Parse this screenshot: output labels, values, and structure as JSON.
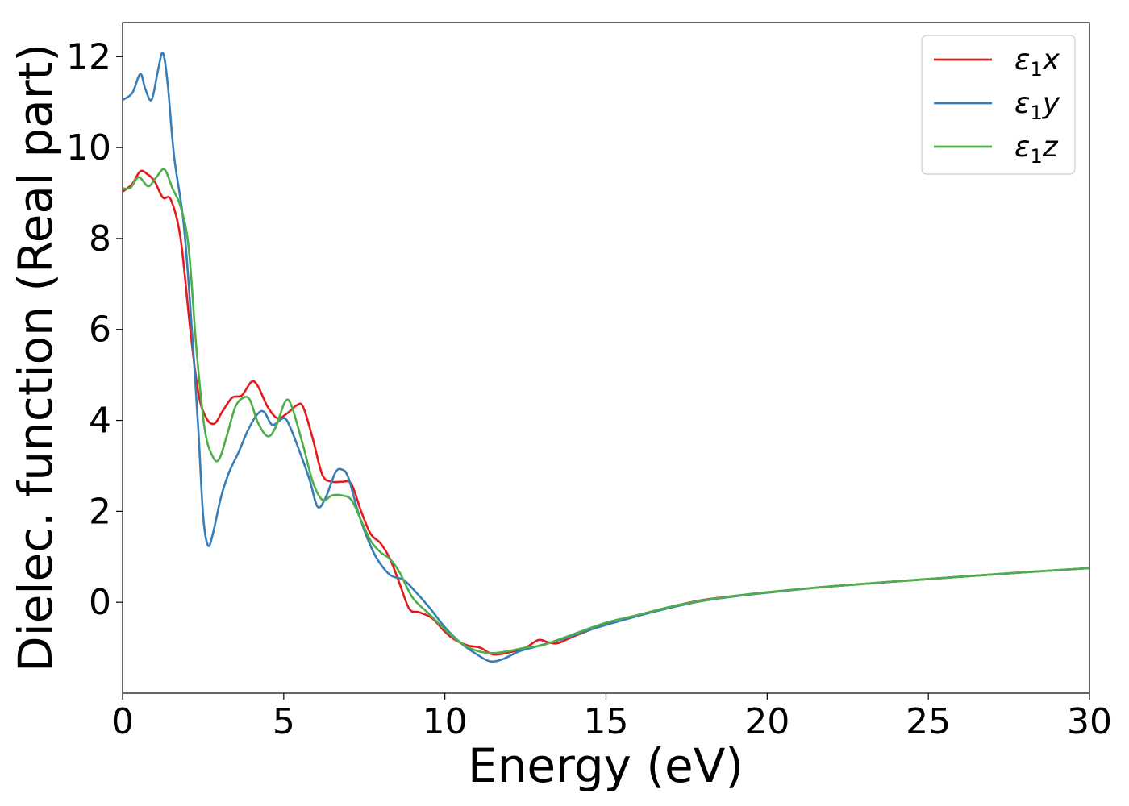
{
  "chart_data": {
    "type": "line",
    "xlabel": "Energy (eV)",
    "ylabel": "Dielec. function (Real part)",
    "xlim": [
      0,
      30
    ],
    "ylim": [
      -2.0,
      12.75
    ],
    "xticks": [
      0,
      5,
      10,
      15,
      20,
      25,
      30
    ],
    "xtick_labels": [
      "0",
      "5",
      "10",
      "15",
      "20",
      "25",
      "30"
    ],
    "yticks": [
      0,
      2,
      4,
      6,
      8,
      10,
      12
    ],
    "ytick_labels": [
      "0",
      "2",
      "4",
      "6",
      "8",
      "10",
      "12"
    ],
    "grid": false,
    "legend_position": "top-right",
    "series": [
      {
        "name": "ε1x",
        "legend_main": "ε",
        "legend_sub": "1",
        "legend_var": "x",
        "color": "#e41a1c",
        "points": [
          [
            0,
            9.03
          ],
          [
            0.3,
            9.2
          ],
          [
            0.55,
            9.48
          ],
          [
            0.8,
            9.4
          ],
          [
            1.0,
            9.25
          ],
          [
            1.25,
            8.9
          ],
          [
            1.5,
            8.85
          ],
          [
            1.8,
            8.0
          ],
          [
            2.1,
            6.0
          ],
          [
            2.35,
            4.6
          ],
          [
            2.6,
            4.05
          ],
          [
            2.85,
            3.93
          ],
          [
            3.1,
            4.2
          ],
          [
            3.4,
            4.5
          ],
          [
            3.7,
            4.55
          ],
          [
            4.0,
            4.85
          ],
          [
            4.2,
            4.75
          ],
          [
            4.5,
            4.3
          ],
          [
            4.8,
            4.05
          ],
          [
            5.1,
            4.15
          ],
          [
            5.4,
            4.33
          ],
          [
            5.6,
            4.3
          ],
          [
            5.9,
            3.6
          ],
          [
            6.2,
            2.8
          ],
          [
            6.5,
            2.65
          ],
          [
            6.8,
            2.65
          ],
          [
            7.1,
            2.6
          ],
          [
            7.4,
            2.0
          ],
          [
            7.7,
            1.5
          ],
          [
            8.0,
            1.3
          ],
          [
            8.3,
            0.95
          ],
          [
            8.6,
            0.4
          ],
          [
            8.9,
            -0.15
          ],
          [
            9.2,
            -0.22
          ],
          [
            9.6,
            -0.35
          ],
          [
            10.0,
            -0.65
          ],
          [
            10.3,
            -0.82
          ],
          [
            10.7,
            -0.95
          ],
          [
            11.1,
            -1.0
          ],
          [
            11.5,
            -1.15
          ],
          [
            12.0,
            -1.1
          ],
          [
            12.5,
            -1.0
          ],
          [
            12.9,
            -0.83
          ],
          [
            13.2,
            -0.88
          ],
          [
            13.5,
            -0.9
          ],
          [
            14.0,
            -0.75
          ],
          [
            15.0,
            -0.48
          ],
          [
            16.0,
            -0.28
          ],
          [
            17.0,
            -0.1
          ],
          [
            18.0,
            0.05
          ],
          [
            19.0,
            0.14
          ],
          [
            20.0,
            0.22
          ],
          [
            22.0,
            0.35
          ],
          [
            25.0,
            0.51
          ],
          [
            28.0,
            0.66
          ],
          [
            30.0,
            0.75
          ]
        ]
      },
      {
        "name": "ε1y",
        "legend_main": "ε",
        "legend_sub": "1",
        "legend_var": "y",
        "color": "#377eb8",
        "points": [
          [
            0,
            11.05
          ],
          [
            0.3,
            11.2
          ],
          [
            0.55,
            11.62
          ],
          [
            0.7,
            11.3
          ],
          [
            0.9,
            11.05
          ],
          [
            1.1,
            11.7
          ],
          [
            1.25,
            12.08
          ],
          [
            1.4,
            11.4
          ],
          [
            1.6,
            9.8
          ],
          [
            1.9,
            8.3
          ],
          [
            2.15,
            6.0
          ],
          [
            2.35,
            3.8
          ],
          [
            2.5,
            1.9
          ],
          [
            2.65,
            1.25
          ],
          [
            2.8,
            1.5
          ],
          [
            3.05,
            2.3
          ],
          [
            3.3,
            2.85
          ],
          [
            3.6,
            3.3
          ],
          [
            3.9,
            3.8
          ],
          [
            4.2,
            4.15
          ],
          [
            4.4,
            4.18
          ],
          [
            4.65,
            3.9
          ],
          [
            5.0,
            4.05
          ],
          [
            5.2,
            3.85
          ],
          [
            5.5,
            3.3
          ],
          [
            5.8,
            2.7
          ],
          [
            6.05,
            2.1
          ],
          [
            6.3,
            2.3
          ],
          [
            6.6,
            2.85
          ],
          [
            6.8,
            2.92
          ],
          [
            7.0,
            2.75
          ],
          [
            7.3,
            2.0
          ],
          [
            7.6,
            1.4
          ],
          [
            7.9,
            0.95
          ],
          [
            8.3,
            0.6
          ],
          [
            8.7,
            0.5
          ],
          [
            9.0,
            0.3
          ],
          [
            9.5,
            -0.1
          ],
          [
            10.0,
            -0.55
          ],
          [
            10.5,
            -0.9
          ],
          [
            11.0,
            -1.15
          ],
          [
            11.4,
            -1.3
          ],
          [
            11.8,
            -1.25
          ],
          [
            12.3,
            -1.08
          ],
          [
            12.8,
            -0.98
          ],
          [
            13.3,
            -0.88
          ],
          [
            13.8,
            -0.78
          ],
          [
            14.3,
            -0.65
          ],
          [
            15.0,
            -0.5
          ],
          [
            16.0,
            -0.3
          ],
          [
            17.0,
            -0.12
          ],
          [
            18.0,
            0.03
          ],
          [
            19.0,
            0.13
          ],
          [
            20.0,
            0.21
          ],
          [
            22.0,
            0.35
          ],
          [
            25.0,
            0.51
          ],
          [
            28.0,
            0.66
          ],
          [
            30.0,
            0.75
          ]
        ]
      },
      {
        "name": "ε1z",
        "legend_main": "ε",
        "legend_sub": "1",
        "legend_var": "z",
        "color": "#4daf4a",
        "points": [
          [
            0,
            9.1
          ],
          [
            0.25,
            9.12
          ],
          [
            0.5,
            9.35
          ],
          [
            0.8,
            9.15
          ],
          [
            1.05,
            9.35
          ],
          [
            1.3,
            9.52
          ],
          [
            1.55,
            9.1
          ],
          [
            1.8,
            8.7
          ],
          [
            2.05,
            7.8
          ],
          [
            2.3,
            5.5
          ],
          [
            2.55,
            3.8
          ],
          [
            2.8,
            3.2
          ],
          [
            3.0,
            3.15
          ],
          [
            3.25,
            3.7
          ],
          [
            3.5,
            4.3
          ],
          [
            3.75,
            4.5
          ],
          [
            3.95,
            4.45
          ],
          [
            4.2,
            3.95
          ],
          [
            4.5,
            3.65
          ],
          [
            4.75,
            3.85
          ],
          [
            5.05,
            4.42
          ],
          [
            5.25,
            4.3
          ],
          [
            5.6,
            3.45
          ],
          [
            5.9,
            2.65
          ],
          [
            6.2,
            2.25
          ],
          [
            6.5,
            2.35
          ],
          [
            6.8,
            2.35
          ],
          [
            7.1,
            2.25
          ],
          [
            7.4,
            1.8
          ],
          [
            7.7,
            1.35
          ],
          [
            8.0,
            1.1
          ],
          [
            8.3,
            0.95
          ],
          [
            8.6,
            0.65
          ],
          [
            9.0,
            0.1
          ],
          [
            9.5,
            -0.25
          ],
          [
            10.0,
            -0.6
          ],
          [
            10.5,
            -0.9
          ],
          [
            11.0,
            -1.07
          ],
          [
            11.5,
            -1.12
          ],
          [
            12.0,
            -1.07
          ],
          [
            12.5,
            -1.0
          ],
          [
            13.0,
            -0.95
          ],
          [
            13.5,
            -0.83
          ],
          [
            14.0,
            -0.7
          ],
          [
            15.0,
            -0.45
          ],
          [
            16.0,
            -0.28
          ],
          [
            17.0,
            -0.1
          ],
          [
            18.0,
            0.04
          ],
          [
            19.0,
            0.14
          ],
          [
            20.0,
            0.22
          ],
          [
            22.0,
            0.35
          ],
          [
            25.0,
            0.51
          ],
          [
            28.0,
            0.66
          ],
          [
            30.0,
            0.75
          ]
        ]
      }
    ]
  }
}
